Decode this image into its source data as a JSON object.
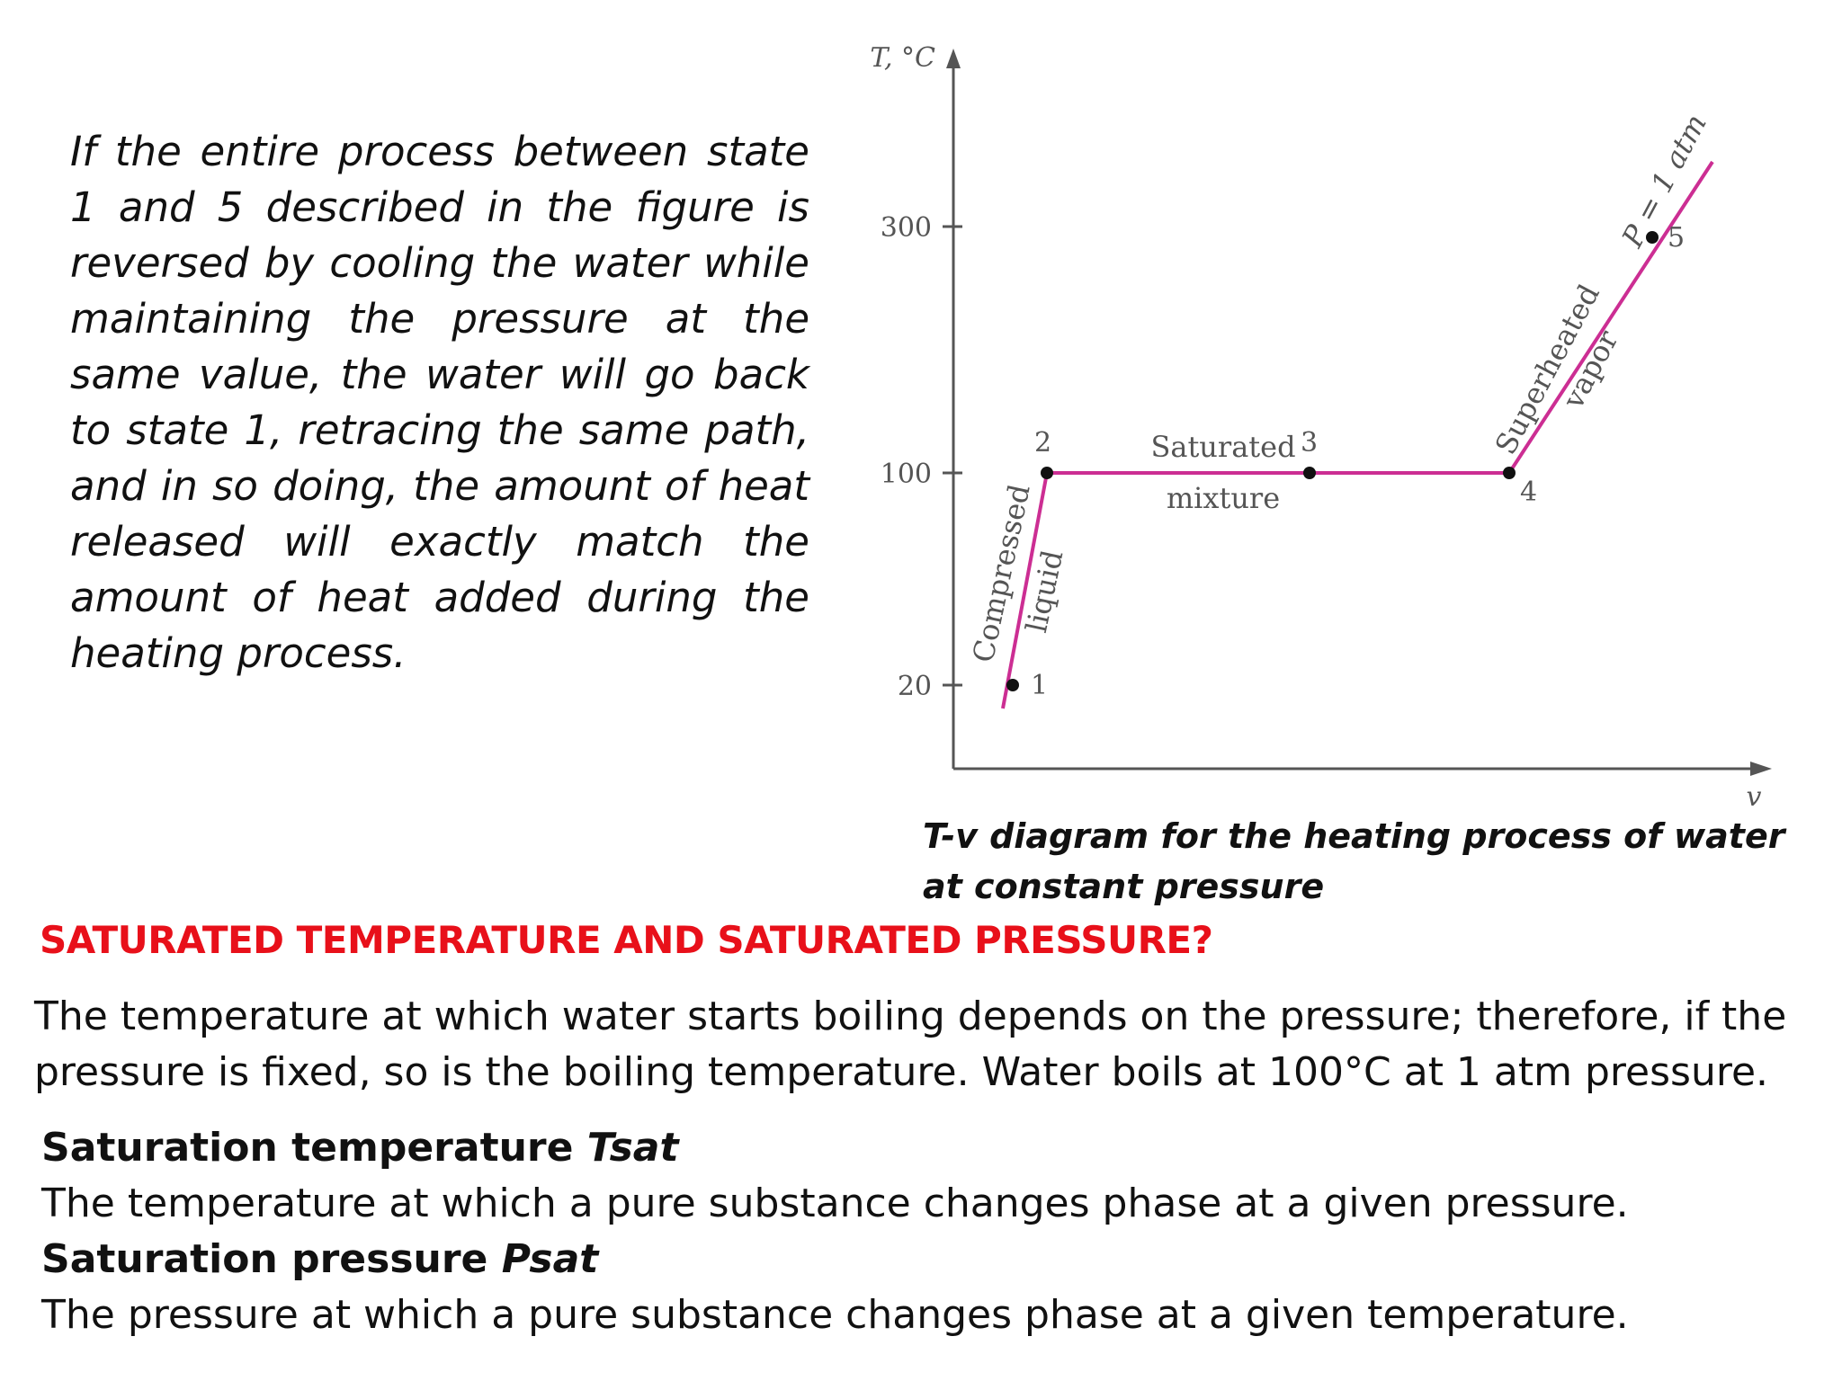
{
  "intro_text": "If the entire process between state 1 and 5 described in the figure is reversed by cooling the water while maintaining the pressure at the same value, the water will go back to state 1, retracing the same path, and in so doing, the amount of heat released will exactly match the amount of heat added during the heating process.",
  "diagram": {
    "y_axis_label": "T, °C",
    "x_axis_label": "v",
    "y_ticks": [
      "300",
      "100",
      "20"
    ],
    "states": [
      "1",
      "2",
      "3",
      "4",
      "5"
    ],
    "regions": {
      "compressed_line1": "Compressed",
      "compressed_line2": "liquid",
      "saturated_line1": "Saturated",
      "saturated_line2": "mixture",
      "superheated_line1": "Superheated",
      "superheated_line2": "vapor"
    },
    "pressure_label": "P = 1 atm",
    "line_color": "#cc2e93"
  },
  "caption": "T-v diagram for the heating process of water at constant pressure",
  "heading": "SATURATED TEMPERATURE AND SATURATED PRESSURE?",
  "heading_color": "#e8101a",
  "paragraph": "The temperature at which water starts boiling depends on the pressure; therefore, if the pressure is fixed, so is the boiling temperature. Water boils at 100°C at 1 atm pressure.",
  "definitions": [
    {
      "term": "Saturation temperature ",
      "symbol": "Tsat",
      "text": "The temperature at which a pure substance changes phase at a given pressure."
    },
    {
      "term": "Saturation pressure ",
      "symbol": "Psat",
      "text": "The pressure at which a pure substance changes phase at a given temperature."
    }
  ]
}
